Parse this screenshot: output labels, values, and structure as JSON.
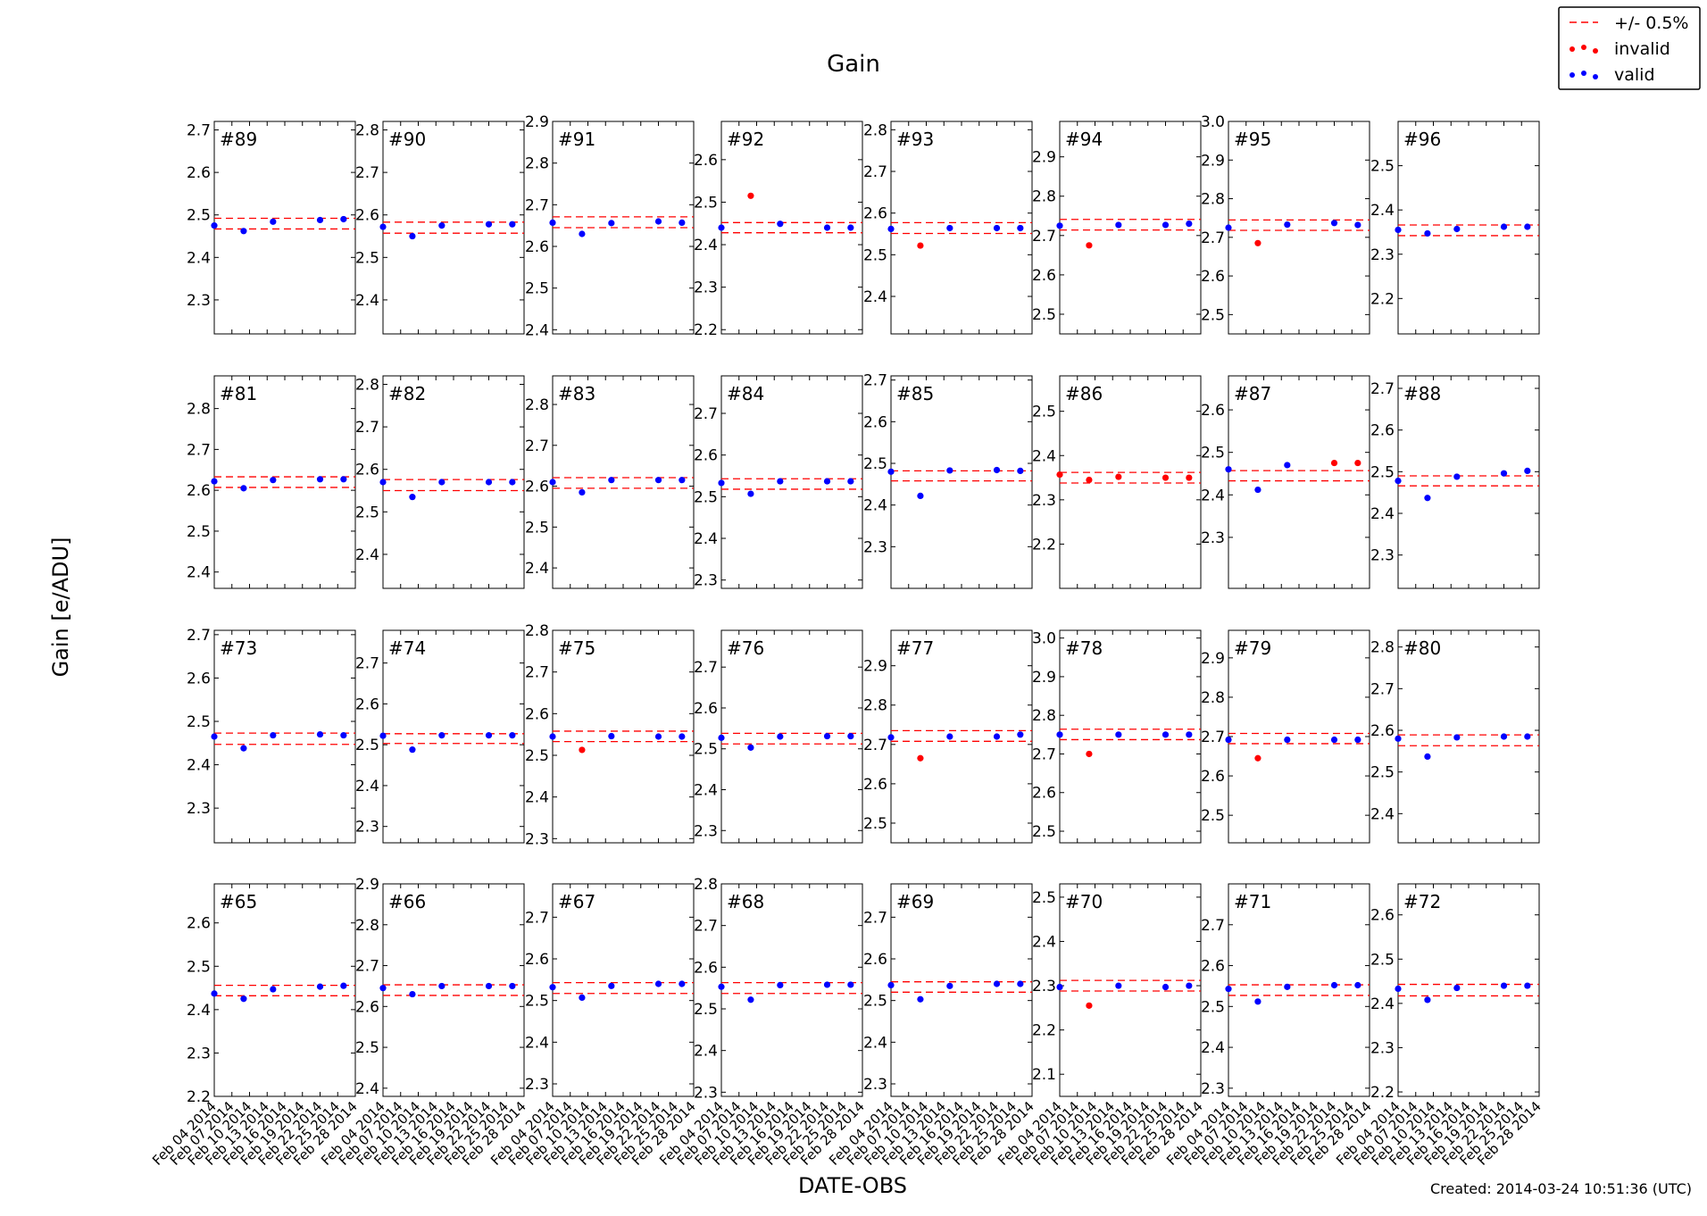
{
  "chart_data": {
    "type": "scatter",
    "title": "Gain",
    "ylabel": "Gain [e/ADU]",
    "xlabel": "DATE-OBS",
    "footer": "Created: 2014-03-24 10:51:36 (UTC)",
    "x_ticks": [
      "Feb 04 2014",
      "Feb 07 2014",
      "Feb 10 2014",
      "Feb 13 2014",
      "Feb 16 2014",
      "Feb 19 2014",
      "Feb 22 2014",
      "Feb 25 2014",
      "Feb 28 2014"
    ],
    "x_dates": [
      "2014-02-04",
      "2014-02-09",
      "2014-02-14",
      "2014-02-22",
      "2014-02-26"
    ],
    "xlim": [
      "2014-02-04",
      "2014-02-28"
    ],
    "legend": {
      "position": "top-right",
      "entries": [
        {
          "label": "+/- 0.5%",
          "style": "dashed-line",
          "color": "#ff0000"
        },
        {
          "label": "invalid",
          "style": "dots",
          "color": "#ff0000"
        },
        {
          "label": "valid",
          "style": "dots",
          "color": "#0000ff"
        }
      ]
    },
    "colors": {
      "valid": "#0000ff",
      "invalid": "#ff0000",
      "band": "#ff0000"
    },
    "panels": [
      {
        "label": "#89",
        "yticks": [
          "2.3",
          "2.4",
          "2.5",
          "2.6",
          "2.7"
        ],
        "ylim": [
          2.22,
          2.72
        ],
        "band": [
          2.467,
          2.492
        ],
        "values": [
          2.475,
          2.462,
          2.484,
          2.488,
          2.49
        ],
        "invalid": []
      },
      {
        "label": "#90",
        "yticks": [
          "2.4",
          "2.5",
          "2.6",
          "2.7",
          "2.8"
        ],
        "ylim": [
          2.32,
          2.82
        ],
        "band": [
          2.557,
          2.583
        ],
        "values": [
          2.572,
          2.55,
          2.575,
          2.578,
          2.578
        ],
        "invalid": []
      },
      {
        "label": "#91",
        "yticks": [
          "2.4",
          "2.5",
          "2.6",
          "2.7",
          "2.8",
          "2.9"
        ],
        "ylim": [
          2.39,
          2.9
        ],
        "band": [
          2.645,
          2.671
        ],
        "values": [
          2.657,
          2.63,
          2.656,
          2.66,
          2.657
        ],
        "invalid": []
      },
      {
        "label": "#92",
        "yticks": [
          "2.2",
          "2.3",
          "2.4",
          "2.5",
          "2.6"
        ],
        "ylim": [
          2.19,
          2.69
        ],
        "band": [
          2.428,
          2.452
        ],
        "values": [
          2.44,
          2.515,
          2.449,
          2.44,
          2.44
        ],
        "invalid": [
          1
        ]
      },
      {
        "label": "#93",
        "yticks": [
          "2.4",
          "2.5",
          "2.6",
          "2.7",
          "2.8"
        ],
        "ylim": [
          2.31,
          2.82
        ],
        "band": [
          2.551,
          2.577
        ],
        "values": [
          2.562,
          2.522,
          2.564,
          2.564,
          2.564
        ],
        "invalid": [
          1
        ]
      },
      {
        "label": "#94",
        "yticks": [
          "2.5",
          "2.6",
          "2.7",
          "2.8",
          "2.9"
        ],
        "ylim": [
          2.45,
          2.99
        ],
        "band": [
          2.714,
          2.741
        ],
        "values": [
          2.725,
          2.675,
          2.727,
          2.727,
          2.73
        ],
        "invalid": [
          1
        ]
      },
      {
        "label": "#95",
        "yticks": [
          "2.5",
          "2.6",
          "2.7",
          "2.8",
          "2.9",
          "3.0"
        ],
        "ylim": [
          2.45,
          3.0
        ],
        "band": [
          2.718,
          2.745
        ],
        "values": [
          2.725,
          2.685,
          2.733,
          2.737,
          2.732
        ],
        "invalid": [
          1
        ]
      },
      {
        "label": "#96",
        "yticks": [
          "2.2",
          "2.3",
          "2.4",
          "2.5"
        ],
        "ylim": [
          2.12,
          2.6
        ],
        "band": [
          2.342,
          2.366
        ],
        "values": [
          2.355,
          2.347,
          2.357,
          2.362,
          2.362
        ],
        "invalid": []
      },
      {
        "label": "#81",
        "yticks": [
          "2.4",
          "2.5",
          "2.6",
          "2.7",
          "2.8"
        ],
        "ylim": [
          2.36,
          2.88
        ],
        "band": [
          2.607,
          2.633
        ],
        "values": [
          2.622,
          2.605,
          2.625,
          2.627,
          2.627
        ],
        "invalid": []
      },
      {
        "label": "#82",
        "yticks": [
          "2.4",
          "2.5",
          "2.6",
          "2.7",
          "2.8"
        ],
        "ylim": [
          2.32,
          2.82
        ],
        "band": [
          2.55,
          2.576
        ],
        "values": [
          2.57,
          2.535,
          2.57,
          2.57,
          2.57
        ],
        "invalid": []
      },
      {
        "label": "#83",
        "yticks": [
          "2.4",
          "2.5",
          "2.6",
          "2.7",
          "2.8"
        ],
        "ylim": [
          2.35,
          2.87
        ],
        "band": [
          2.595,
          2.621
        ],
        "values": [
          2.61,
          2.585,
          2.615,
          2.615,
          2.615
        ],
        "invalid": []
      },
      {
        "label": "#84",
        "yticks": [
          "2.3",
          "2.4",
          "2.5",
          "2.6",
          "2.7"
        ],
        "ylim": [
          2.28,
          2.79
        ],
        "band": [
          2.518,
          2.543
        ],
        "values": [
          2.533,
          2.507,
          2.537,
          2.537,
          2.537
        ],
        "invalid": []
      },
      {
        "label": "#85",
        "yticks": [
          "2.3",
          "2.4",
          "2.5",
          "2.6",
          "2.7"
        ],
        "ylim": [
          2.2,
          2.71
        ],
        "band": [
          2.458,
          2.482
        ],
        "values": [
          2.48,
          2.422,
          2.483,
          2.484,
          2.482
        ],
        "invalid": []
      },
      {
        "label": "#86",
        "yticks": [
          "2.2",
          "2.3",
          "2.4",
          "2.5"
        ],
        "ylim": [
          2.1,
          2.58
        ],
        "band": [
          2.338,
          2.362
        ],
        "values": [
          2.357,
          2.345,
          2.352,
          2.35,
          2.35
        ],
        "invalid": [
          0,
          1,
          2,
          3,
          4
        ]
      },
      {
        "label": "#87",
        "yticks": [
          "2.3",
          "2.4",
          "2.5",
          "2.6"
        ],
        "ylim": [
          2.18,
          2.68
        ],
        "band": [
          2.433,
          2.457
        ],
        "values": [
          2.46,
          2.412,
          2.47,
          2.475,
          2.475
        ],
        "invalid": [
          3,
          4
        ]
      },
      {
        "label": "#88",
        "yticks": [
          "2.3",
          "2.4",
          "2.5",
          "2.6",
          "2.7"
        ],
        "ylim": [
          2.22,
          2.73
        ],
        "band": [
          2.466,
          2.49
        ],
        "values": [
          2.478,
          2.437,
          2.488,
          2.496,
          2.502
        ],
        "invalid": []
      },
      {
        "label": "#73",
        "yticks": [
          "2.3",
          "2.4",
          "2.5",
          "2.6",
          "2.7"
        ],
        "ylim": [
          2.22,
          2.71
        ],
        "band": [
          2.447,
          2.473
        ],
        "values": [
          2.465,
          2.438,
          2.468,
          2.47,
          2.468
        ],
        "invalid": []
      },
      {
        "label": "#74",
        "yticks": [
          "2.3",
          "2.4",
          "2.5",
          "2.6",
          "2.7"
        ],
        "ylim": [
          2.26,
          2.78
        ],
        "band": [
          2.503,
          2.527
        ],
        "values": [
          2.522,
          2.488,
          2.523,
          2.523,
          2.523
        ],
        "invalid": []
      },
      {
        "label": "#75",
        "yticks": [
          "2.3",
          "2.4",
          "2.5",
          "2.6",
          "2.7",
          "2.8"
        ],
        "ylim": [
          2.29,
          2.8
        ],
        "band": [
          2.533,
          2.558
        ],
        "values": [
          2.545,
          2.513,
          2.546,
          2.545,
          2.545
        ],
        "invalid": [
          1
        ]
      },
      {
        "label": "#76",
        "yticks": [
          "2.3",
          "2.4",
          "2.5",
          "2.6",
          "2.7"
        ],
        "ylim": [
          2.27,
          2.79
        ],
        "band": [
          2.512,
          2.538
        ],
        "values": [
          2.527,
          2.503,
          2.53,
          2.531,
          2.531
        ],
        "invalid": []
      },
      {
        "label": "#77",
        "yticks": [
          "2.5",
          "2.6",
          "2.7",
          "2.8",
          "2.9"
        ],
        "ylim": [
          2.45,
          2.99
        ],
        "band": [
          2.708,
          2.735
        ],
        "values": [
          2.718,
          2.665,
          2.72,
          2.72,
          2.725
        ],
        "invalid": [
          1
        ]
      },
      {
        "label": "#78",
        "yticks": [
          "2.5",
          "2.6",
          "2.7",
          "2.8",
          "2.9",
          "3.0"
        ],
        "ylim": [
          2.47,
          3.02
        ],
        "band": [
          2.737,
          2.764
        ],
        "values": [
          2.75,
          2.7,
          2.75,
          2.75,
          2.75
        ],
        "invalid": [
          1
        ]
      },
      {
        "label": "#79",
        "yticks": [
          "2.5",
          "2.6",
          "2.7",
          "2.8",
          "2.9"
        ],
        "ylim": [
          2.43,
          2.97
        ],
        "band": [
          2.682,
          2.708
        ],
        "values": [
          2.692,
          2.645,
          2.692,
          2.692,
          2.692
        ],
        "invalid": [
          1
        ]
      },
      {
        "label": "#80",
        "yticks": [
          "2.4",
          "2.5",
          "2.6",
          "2.7",
          "2.8"
        ],
        "ylim": [
          2.33,
          2.84
        ],
        "band": [
          2.563,
          2.589
        ],
        "values": [
          2.58,
          2.537,
          2.583,
          2.585,
          2.585
        ],
        "invalid": []
      },
      {
        "label": "#65",
        "yticks": [
          "2.2",
          "2.3",
          "2.4",
          "2.5",
          "2.6"
        ],
        "ylim": [
          2.2,
          2.69
        ],
        "band": [
          2.432,
          2.456
        ],
        "values": [
          2.437,
          2.425,
          2.447,
          2.453,
          2.455
        ],
        "invalid": []
      },
      {
        "label": "#66",
        "yticks": [
          "2.4",
          "2.5",
          "2.6",
          "2.7",
          "2.8",
          "2.9"
        ],
        "ylim": [
          2.38,
          2.9
        ],
        "band": [
          2.627,
          2.653
        ],
        "values": [
          2.645,
          2.63,
          2.65,
          2.65,
          2.65
        ],
        "invalid": []
      },
      {
        "label": "#67",
        "yticks": [
          "2.3",
          "2.4",
          "2.5",
          "2.6",
          "2.7"
        ],
        "ylim": [
          2.27,
          2.78
        ],
        "band": [
          2.517,
          2.543
        ],
        "values": [
          2.532,
          2.507,
          2.535,
          2.54,
          2.54
        ],
        "invalid": []
      },
      {
        "label": "#68",
        "yticks": [
          "2.3",
          "2.4",
          "2.5",
          "2.6",
          "2.7",
          "2.8"
        ],
        "ylim": [
          2.29,
          2.8
        ],
        "band": [
          2.537,
          2.563
        ],
        "values": [
          2.553,
          2.522,
          2.557,
          2.558,
          2.558
        ],
        "invalid": []
      },
      {
        "label": "#69",
        "yticks": [
          "2.3",
          "2.4",
          "2.5",
          "2.6",
          "2.7"
        ],
        "ylim": [
          2.27,
          2.78
        ],
        "band": [
          2.52,
          2.545
        ],
        "values": [
          2.537,
          2.503,
          2.535,
          2.54,
          2.54
        ],
        "invalid": []
      },
      {
        "label": "#70",
        "yticks": [
          "2.1",
          "2.2",
          "2.3",
          "2.4",
          "2.5"
        ],
        "ylim": [
          2.05,
          2.53
        ],
        "band": [
          2.288,
          2.312
        ],
        "values": [
          2.297,
          2.255,
          2.3,
          2.297,
          2.3
        ],
        "invalid": [
          1
        ]
      },
      {
        "label": "#71",
        "yticks": [
          "2.3",
          "2.4",
          "2.5",
          "2.6",
          "2.7"
        ],
        "ylim": [
          2.28,
          2.8
        ],
        "band": [
          2.527,
          2.553
        ],
        "values": [
          2.543,
          2.512,
          2.548,
          2.552,
          2.552
        ],
        "invalid": []
      },
      {
        "label": "#72",
        "yticks": [
          "2.2",
          "2.3",
          "2.4",
          "2.5",
          "2.6"
        ],
        "ylim": [
          2.19,
          2.67
        ],
        "band": [
          2.417,
          2.443
        ],
        "values": [
          2.433,
          2.408,
          2.435,
          2.44,
          2.44
        ],
        "invalid": []
      }
    ]
  }
}
